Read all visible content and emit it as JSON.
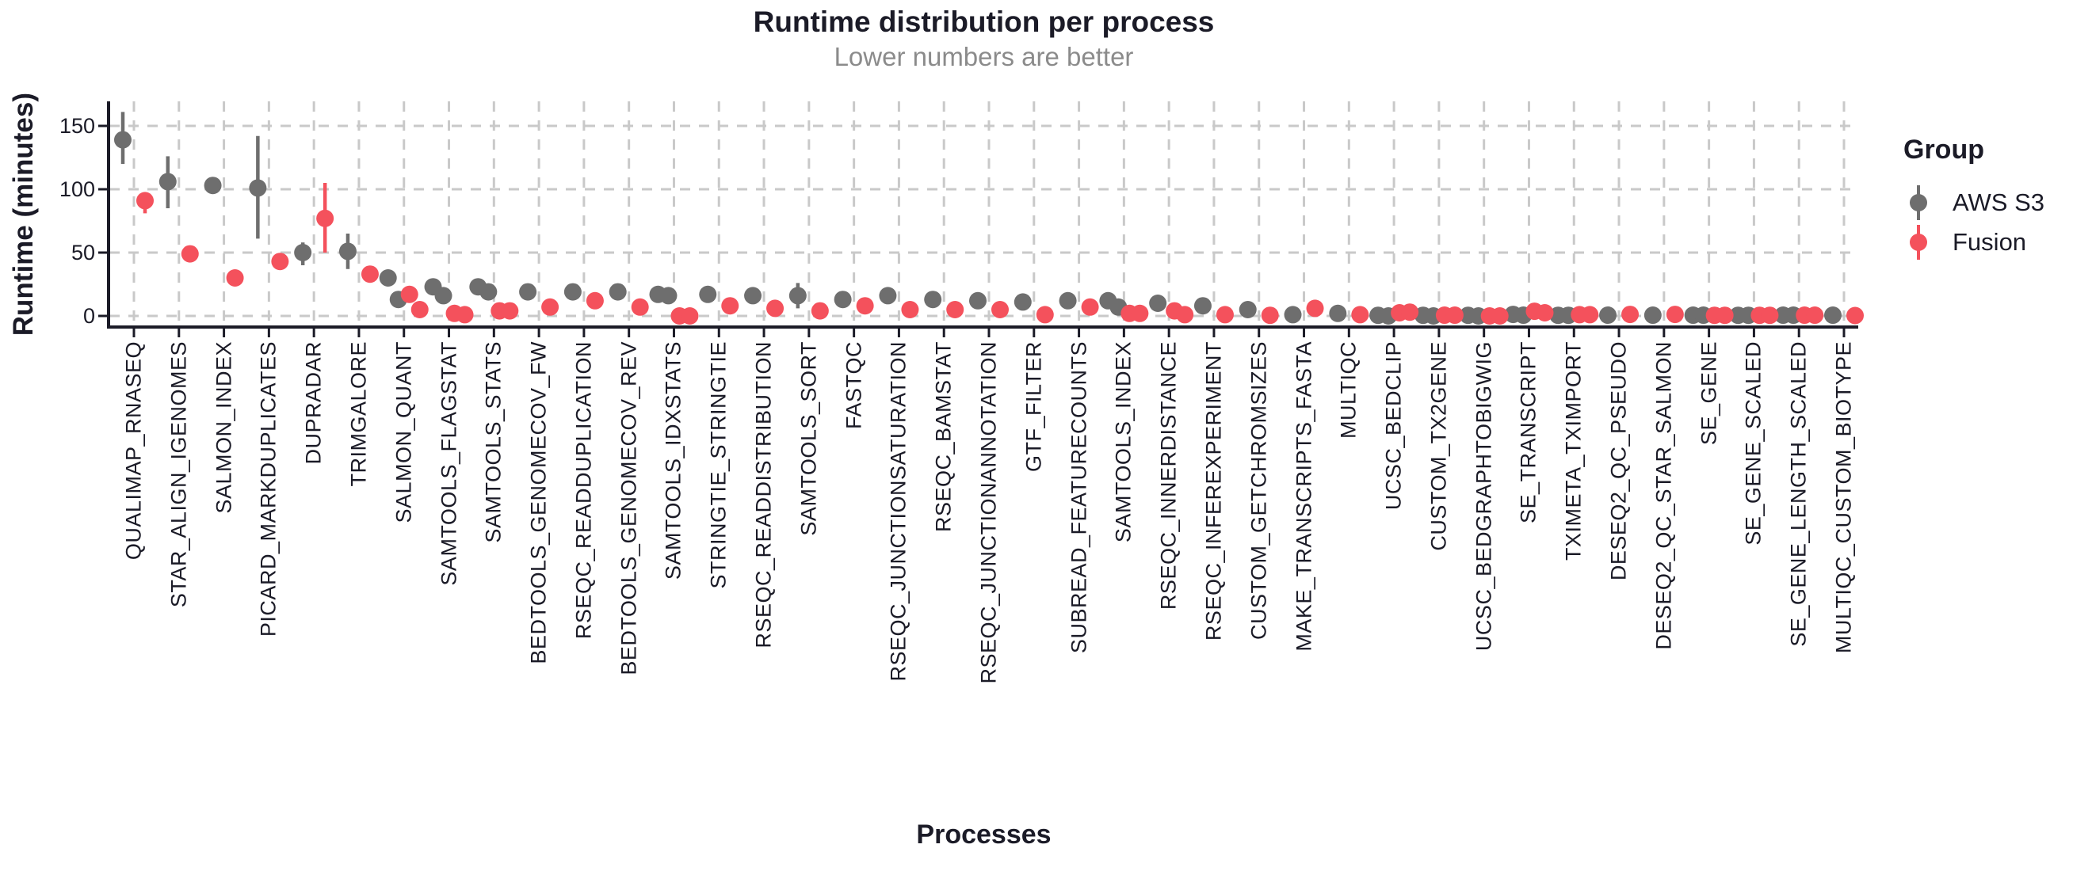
{
  "header": {
    "title": "Runtime distribution per process",
    "subtitle": "Lower numbers are better"
  },
  "axes": {
    "y_title": "Runtime (minutes)",
    "x_title": "Processes",
    "y_ticks": [
      0,
      50,
      100,
      150
    ]
  },
  "legend": {
    "title": "Group",
    "entries": [
      {
        "label": "AWS S3",
        "color": "#6e6e6e"
      },
      {
        "label": "Fusion",
        "color": "#f4515c"
      }
    ]
  },
  "colors": {
    "text_dark": "#1b1b27",
    "subtitle_gray": "#8b8b8b",
    "grid": "#c9c9c9",
    "aws_gray": "#6e6e6e",
    "fusion_red": "#f4515c"
  },
  "chart_data": {
    "type": "pointrange-dot",
    "title": "Runtime distribution per process",
    "subtitle": "Lower numbers are better",
    "xlabel": "Processes",
    "ylabel": "Runtime (minutes)",
    "ylim": [
      -9,
      169
    ],
    "yticks": [
      0,
      50,
      100,
      150
    ],
    "grid": "dashed-major-both",
    "legend_position": "right",
    "legend_title": "Group",
    "categories": [
      "QUALIMAP_RNASEQ",
      "STAR_ALIGN_IGENOMES",
      "SALMON_INDEX",
      "PICARD_MARKDUPLICATES",
      "DUPRADAR",
      "TRIMGALORE",
      "SALMON_QUANT",
      "SAMTOOLS_FLAGSTAT",
      "SAMTOOLS_STATS",
      "BEDTOOLS_GENOMECOV_FW",
      "RSEQC_READDUPLICATION",
      "BEDTOOLS_GENOMECOV_REV",
      "SAMTOOLS_IDXSTATS",
      "STRINGTIE_STRINGTIE",
      "RSEQC_READDISTRIBUTION",
      "SAMTOOLS_SORT",
      "FASTQC",
      "RSEQC_JUNCTIONSATURATION",
      "RSEQC_BAMSTAT",
      "RSEQC_JUNCTIONANNOTATION",
      "GTF_FILTER",
      "SUBREAD_FEATURECOUNTS",
      "SAMTOOLS_INDEX",
      "RSEQC_INNERDISTANCE",
      "RSEQC_INFEREXPERIMENT",
      "CUSTOM_GETCHROMSIZES",
      "MAKE_TRANSCRIPTS_FASTA",
      "MULTIQC",
      "UCSC_BEDCLIP",
      "CUSTOM_TX2GENE",
      "UCSC_BEDGRAPHTOBIGWIG",
      "SE_TRANSCRIPT",
      "TXIMETA_TXIMPORT",
      "DESEQ2_QC_PSEUDO",
      "DESEQ2_QC_STAR_SALMON",
      "SE_GENE",
      "SE_GENE_SCALED",
      "SE_GENE_LENGTH_SCALED",
      "MULTIQC_CUSTOM_BIOTYPE"
    ],
    "series": [
      {
        "name": "AWS S3",
        "color": "#6e6e6e",
        "points": [
          {
            "v": 139,
            "lo": 120,
            "hi": 161
          },
          {
            "v": 106,
            "lo": 85,
            "hi": 126
          },
          {
            "v": 103
          },
          {
            "v": 101,
            "lo": 61,
            "hi": 142
          },
          {
            "v": 50,
            "lo": 40,
            "hi": 58
          },
          {
            "v": 51,
            "lo": 37,
            "hi": 65
          },
          {
            "v": 30,
            "v2": 13
          },
          {
            "v": 23,
            "v2": 16
          },
          {
            "v": 23,
            "v2": 19
          },
          {
            "v": 19
          },
          {
            "v": 19
          },
          {
            "v": 19
          },
          {
            "v": 17,
            "v2": 16
          },
          {
            "v": 17
          },
          {
            "v": 16
          },
          {
            "v": 16,
            "lo": 6,
            "hi": 26
          },
          {
            "v": 13
          },
          {
            "v": 16
          },
          {
            "v": 13
          },
          {
            "v": 12
          },
          {
            "v": 11
          },
          {
            "v": 12
          },
          {
            "v": 12,
            "v2": 7
          },
          {
            "v": 10
          },
          {
            "v": 8
          },
          {
            "v": 5
          },
          {
            "v": 1
          },
          {
            "v": 2
          },
          {
            "v": 0.5,
            "v2": 0
          },
          {
            "v": 0.5,
            "v2": 0
          },
          {
            "v": 0.5,
            "v2": 0
          },
          {
            "v": 1.2,
            "v2": 0.6
          },
          {
            "v": 0.5,
            "v2": 0.5
          },
          {
            "v": 0.6
          },
          {
            "v": 0.6
          },
          {
            "v": 0.6,
            "v2": 0.6
          },
          {
            "v": 0.5,
            "v2": 0.5
          },
          {
            "v": 0.6,
            "v2": 0.6
          },
          {
            "v": 0.6
          }
        ]
      },
      {
        "name": "Fusion",
        "color": "#f4515c",
        "points": [
          {
            "v": 91,
            "lo": 81,
            "hi": 97
          },
          {
            "v": 49
          },
          {
            "v": 30
          },
          {
            "v": 43
          },
          {
            "v": 77,
            "lo": 50,
            "hi": 105
          },
          {
            "v": 33
          },
          {
            "v": 17,
            "v2": 5
          },
          {
            "v": 2,
            "v2": 1
          },
          {
            "v": 4,
            "v2": 4
          },
          {
            "v": 7
          },
          {
            "v": 12
          },
          {
            "v": 7
          },
          {
            "v": 0,
            "v2": 0
          },
          {
            "v": 8
          },
          {
            "v": 6
          },
          {
            "v": 4
          },
          {
            "v": 8
          },
          {
            "v": 5
          },
          {
            "v": 5
          },
          {
            "v": 5
          },
          {
            "v": 1
          },
          {
            "v": 7
          },
          {
            "v": 2,
            "v2": 2
          },
          {
            "v": 4,
            "v2": 1
          },
          {
            "v": 1
          },
          {
            "v": 0.5
          },
          {
            "v": 6
          },
          {
            "v": 1
          },
          {
            "v": 2.5,
            "v2": 3
          },
          {
            "v": 0.6,
            "v2": 0.6
          },
          {
            "v": 0,
            "v2": 0
          },
          {
            "v": 3.7,
            "v2": 2.5
          },
          {
            "v": 1,
            "v2": 1
          },
          {
            "v": 1.2
          },
          {
            "v": 1.2
          },
          {
            "v": 0.5,
            "v2": 0.5
          },
          {
            "v": 0.5,
            "v2": 0.5
          },
          {
            "v": 0.6,
            "v2": 0.6
          },
          {
            "v": 0.3
          }
        ]
      }
    ]
  }
}
